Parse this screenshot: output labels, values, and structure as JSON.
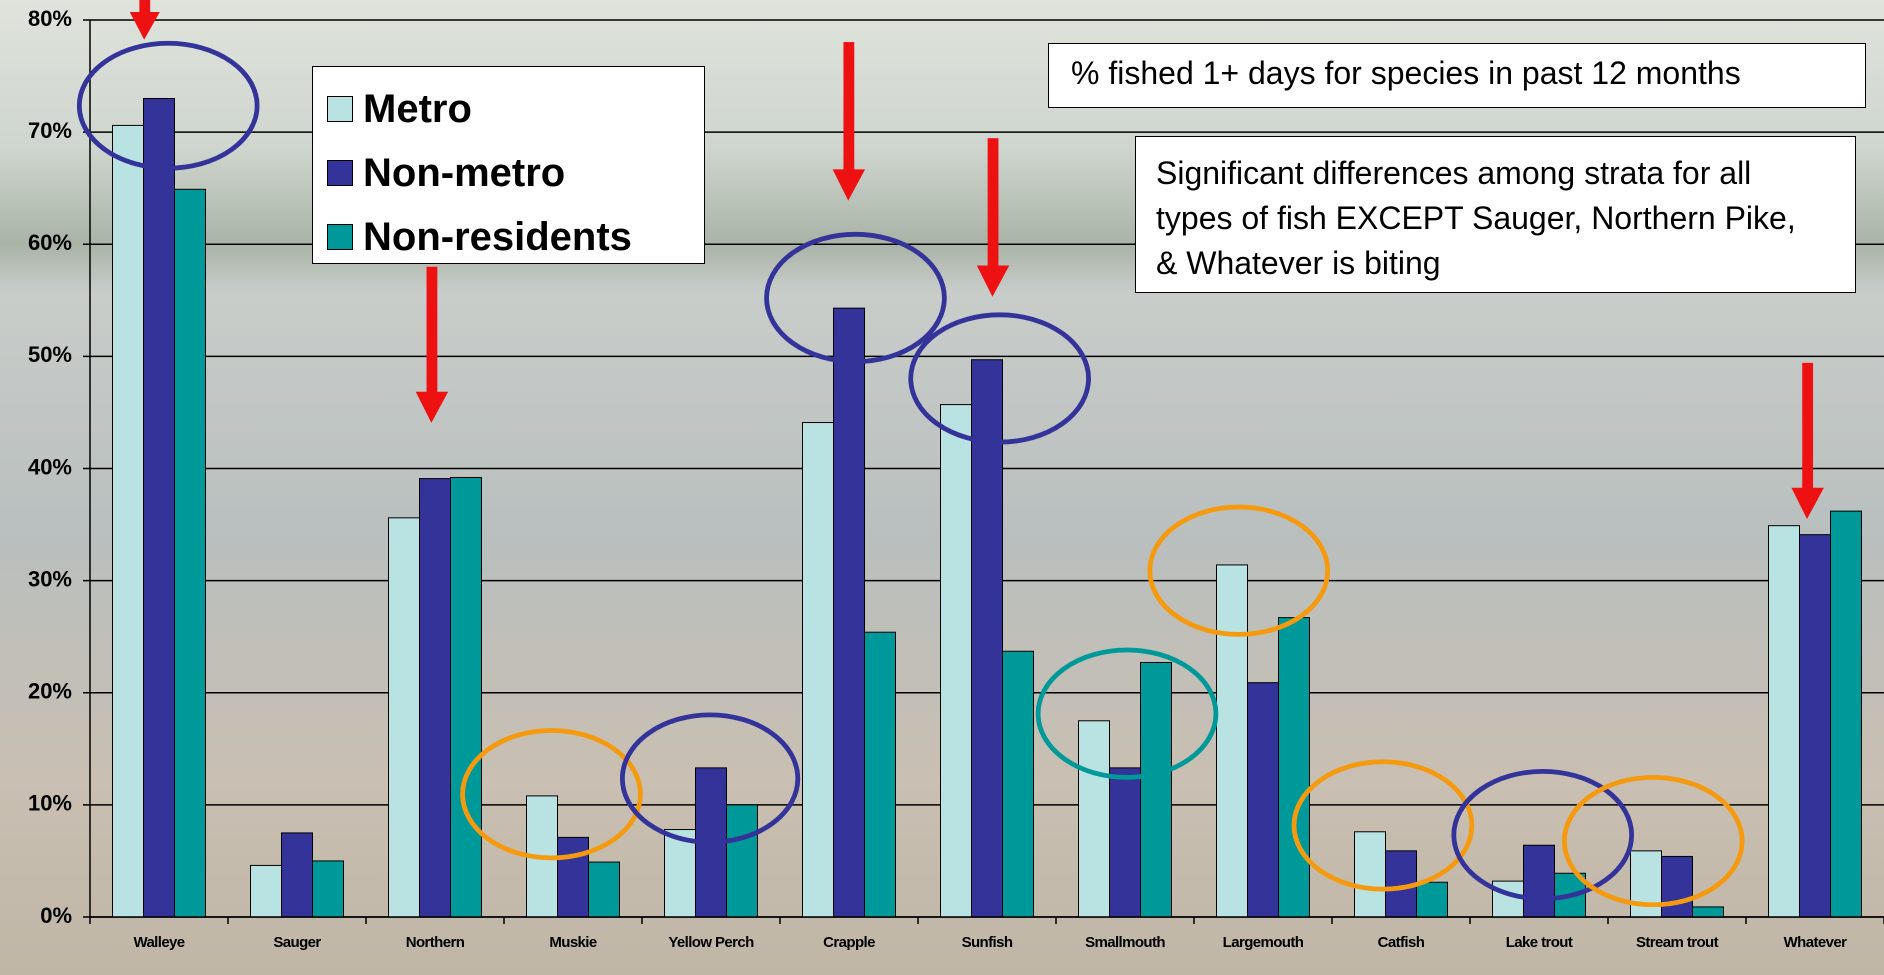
{
  "chart_data": {
    "type": "bar",
    "categories": [
      "Walleye",
      "Sauger",
      "Northern",
      "Muskie",
      "Yellow Perch",
      "Crapple",
      "Sunfish",
      "Smallmouth",
      "Largemouth",
      "Catfish",
      "Lake trout",
      "Stream trout",
      "Whatever"
    ],
    "series": [
      {
        "name": "Metro",
        "color": "#b9e3e3",
        "values": [
          70.6,
          4.6,
          35.6,
          10.8,
          7.8,
          44.1,
          45.7,
          17.5,
          31.4,
          7.6,
          3.2,
          5.9,
          34.9
        ]
      },
      {
        "name": "Non-metro",
        "color": "#333399",
        "values": [
          73.0,
          7.5,
          39.1,
          7.1,
          13.3,
          54.3,
          49.7,
          13.3,
          20.9,
          5.9,
          6.4,
          5.4,
          34.1
        ]
      },
      {
        "name": "Non-residents",
        "color": "#009999",
        "values": [
          64.9,
          5.0,
          39.2,
          4.9,
          10.0,
          25.4,
          23.7,
          22.7,
          26.7,
          3.1,
          3.9,
          0.9,
          36.2
        ]
      }
    ],
    "ylim": [
      0,
      80
    ],
    "yticks": [
      {
        "value": 0,
        "label": "0%"
      },
      {
        "value": 10,
        "label": "10%"
      },
      {
        "value": 20,
        "label": "20%"
      },
      {
        "value": 30,
        "label": "30%"
      },
      {
        "value": 40,
        "label": "40%"
      },
      {
        "value": 50,
        "label": "50%"
      },
      {
        "value": 60,
        "label": "60%"
      },
      {
        "value": 70,
        "label": "70%"
      },
      {
        "value": 80,
        "label": "80%"
      }
    ],
    "grid": true,
    "annotations": [
      "% fished 1+ days for species in past 12 months",
      "Significant differences among strata for all types of fish EXCEPT Sauger, Northern Pike, & Whatever is biting"
    ]
  }
}
